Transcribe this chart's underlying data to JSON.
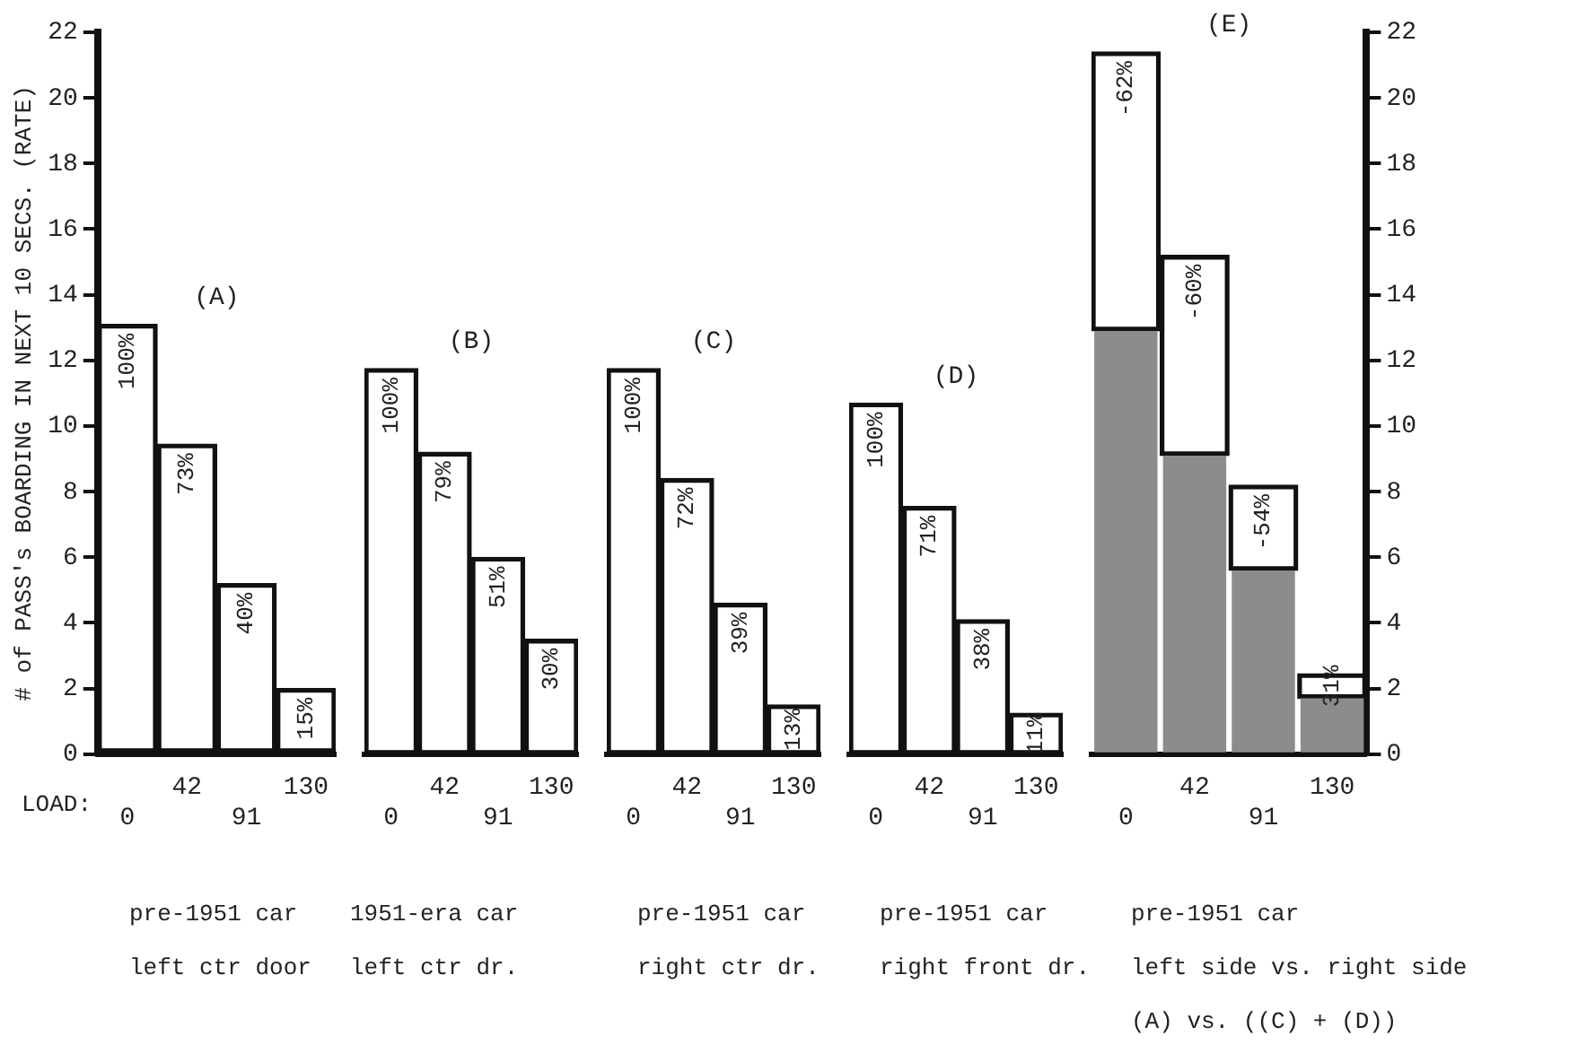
{
  "chart_data": [
    {
      "type": "bar",
      "title": "(A)",
      "categories": [
        "0",
        "42",
        "91",
        "130"
      ],
      "xlabel": "pre-1951 car\nleft ctr door",
      "ylabel": "# of PASS's BOARDING IN NEXT 10 SECS. (RATE)",
      "color": "#111111",
      "values": [
        13.1,
        9.45,
        5.2,
        2.0
      ],
      "ylim": [
        0,
        22
      ],
      "yticks": [
        0,
        2,
        4,
        6,
        8,
        10,
        12,
        14,
        16,
        18,
        20,
        22
      ],
      "grid": false,
      "annotations": [
        "LOAD:",
        {
          "text": "100%",
          "x": "0",
          "y": 13.1
        },
        {
          "text": "73%",
          "x": "42",
          "y": 9.45
        },
        {
          "text": "40%",
          "x": "91",
          "y": 5.2
        },
        {
          "text": "15%",
          "x": "130",
          "y": 2.0
        }
      ]
    },
    {
      "type": "bar",
      "title": "(B)",
      "categories": [
        "0",
        "42",
        "91",
        "130"
      ],
      "xlabel": "1951-era car\nleft ctr dr.",
      "color": "#111111",
      "values": [
        11.75,
        9.2,
        6.0,
        3.5
      ],
      "ylim": [
        0,
        22
      ],
      "tick_labels": "x",
      "grid": false,
      "annotations": [
        {
          "text": "100%",
          "x": "0",
          "y": 11.75
        },
        {
          "text": "79%",
          "x": "42",
          "y": 9.2
        },
        {
          "text": "51%",
          "x": "91",
          "y": 6.0
        },
        {
          "text": "30%",
          "x": "130",
          "y": 3.5
        }
      ]
    },
    {
      "type": "bar",
      "title": "(C)",
      "categories": [
        "0",
        "42",
        "91",
        "130"
      ],
      "xlabel": "pre-1951 car\nright ctr dr.",
      "color": "#111111",
      "values": [
        11.75,
        8.4,
        4.6,
        1.5
      ],
      "ylim": [
        0,
        22
      ],
      "tick_labels": "x",
      "grid": false,
      "annotations": [
        {
          "text": "100%",
          "x": "0",
          "y": 11.75
        },
        {
          "text": "72%",
          "x": "42",
          "y": 8.4
        },
        {
          "text": "39%",
          "x": "91",
          "y": 4.6
        },
        {
          "text": "13%",
          "x": "130",
          "y": 1.5
        }
      ]
    },
    {
      "type": "bar",
      "title": "(D)",
      "categories": [
        "0",
        "42",
        "91",
        "130"
      ],
      "xlabel": "pre-1951 car\nright front dr.",
      "color": "#111111",
      "values": [
        10.7,
        7.55,
        4.1,
        1.25
      ],
      "ylim": [
        0,
        22
      ],
      "tick_labels": "x",
      "grid": false,
      "annotations": [
        {
          "text": "100%",
          "x": "0",
          "y": 10.7
        },
        {
          "text": "71%",
          "x": "42",
          "y": 7.55
        },
        {
          "text": "38%",
          "x": "91",
          "y": 4.1
        },
        {
          "text": "11%",
          "x": "130",
          "y": 1.25
        }
      ]
    },
    {
      "type": "bar",
      "title": "(E)",
      "categories": [
        "0",
        "42",
        "91",
        "130"
      ],
      "xlabel": "pre-1951 car\nleft side vs. right side\n(A) vs. ((C) + (D))",
      "grid": false,
      "stacked": true,
      "series": [
        {
          "color": "#8c8c8c",
          "values": [
            12.9,
            9.1,
            5.6,
            1.7
          ]
        },
        {
          "color": "#111111",
          "values": [
            8.5,
            6.1,
            2.6,
            0.75
          ]
        }
      ],
      "ylim": [
        0,
        22
      ],
      "yticks": [
        0,
        2,
        4,
        6,
        8,
        10,
        12,
        14,
        16,
        18,
        20,
        22
      ],
      "annotations": [
        {
          "text": "-62%",
          "x": "0",
          "y": 21.4
        },
        {
          "text": "-60%",
          "x": "42",
          "y": 15.2
        },
        {
          "text": "-54%",
          "x": "91",
          "y": 8.2
        },
        {
          "text": "31%",
          "x": "130",
          "y": 2.45
        }
      ]
    }
  ]
}
